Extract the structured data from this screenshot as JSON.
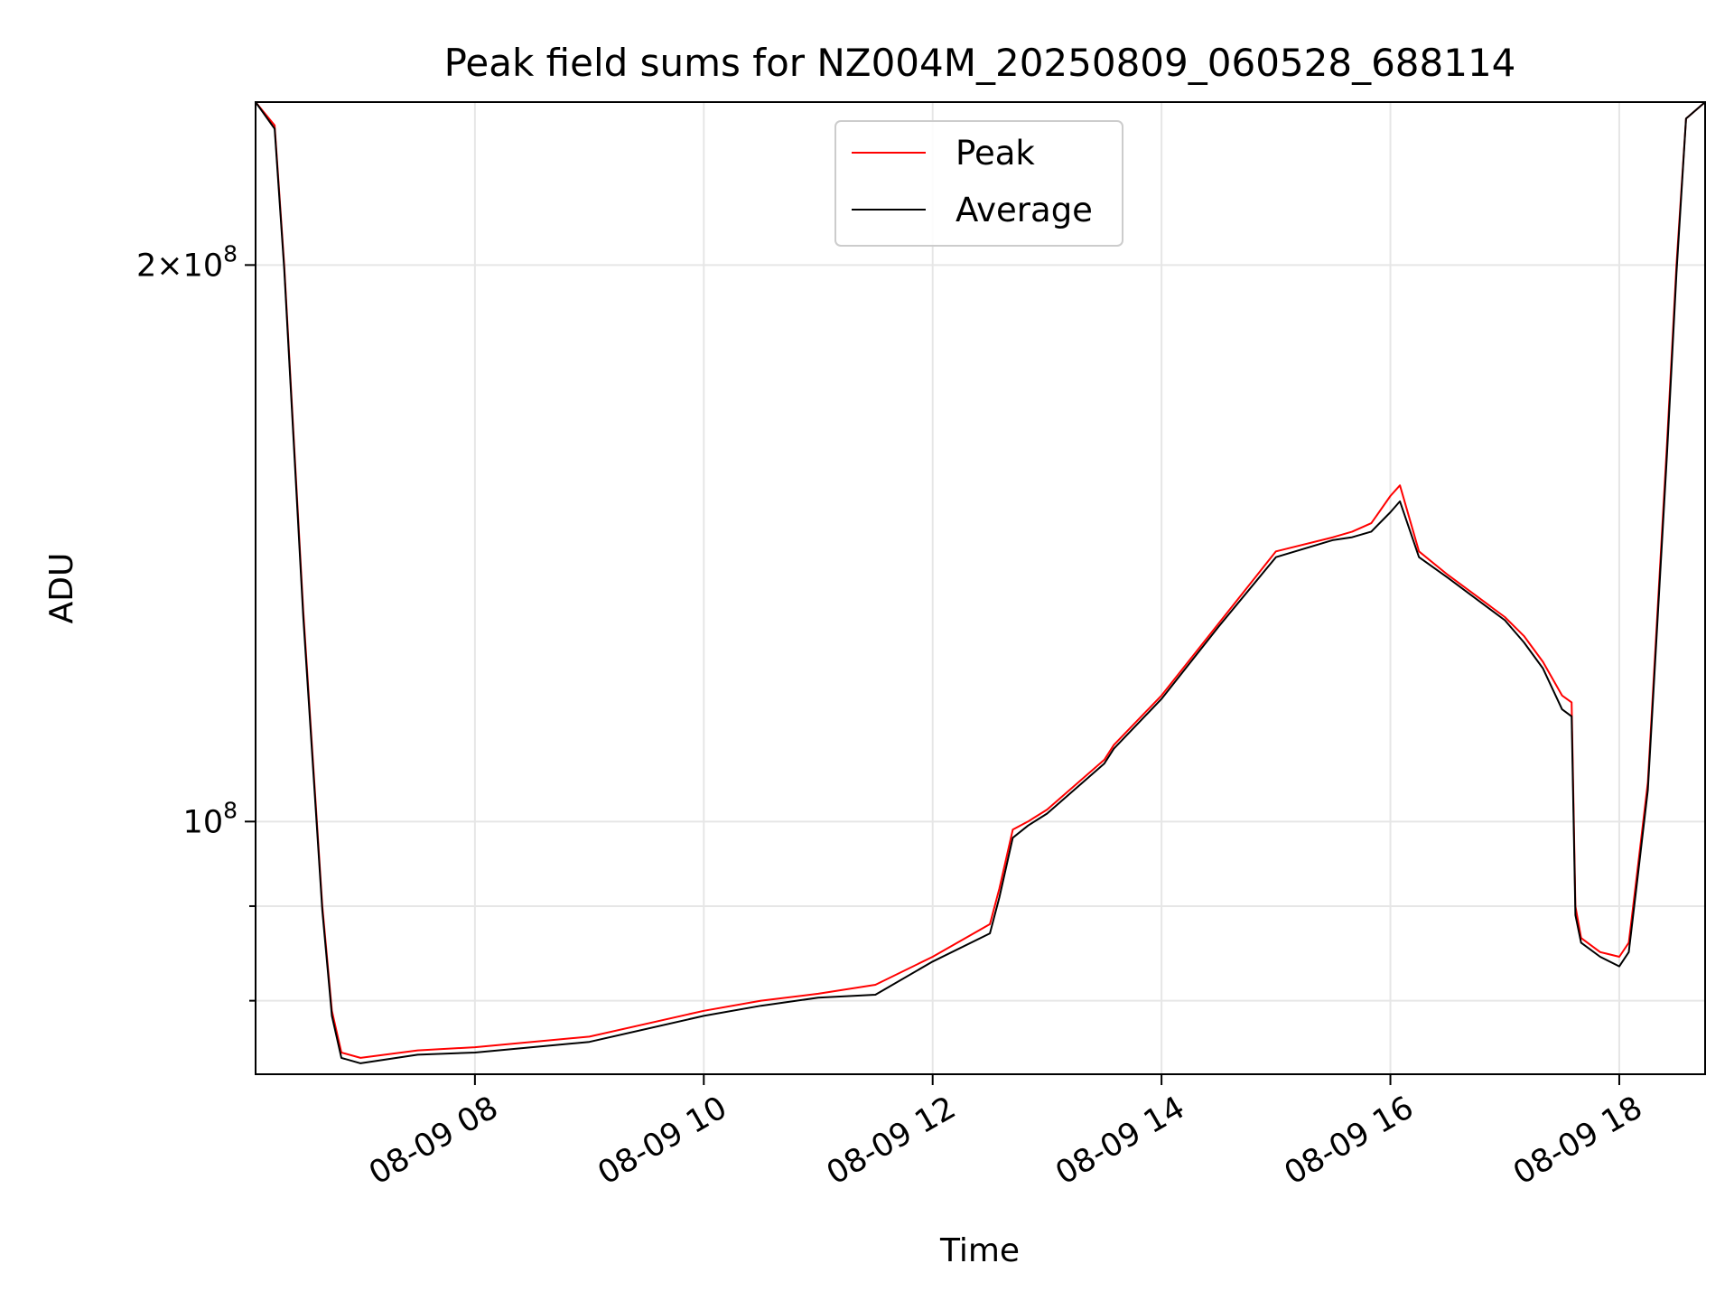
{
  "chart_data": {
    "type": "line",
    "title": "Peak field sums for NZ004M_20250809_060528_688114",
    "xlabel": "Time",
    "ylabel": "ADU",
    "y_scale": "log",
    "ylim": [
      73000000,
      245000000
    ],
    "xlim": [
      "2025-08-09 06:05",
      "2025-08-09 18:45"
    ],
    "x_ticks": [
      {
        "x": "2025-08-09 08:00",
        "label": "08-09 08"
      },
      {
        "x": "2025-08-09 10:00",
        "label": "08-09 10"
      },
      {
        "x": "2025-08-09 12:00",
        "label": "08-09 12"
      },
      {
        "x": "2025-08-09 14:00",
        "label": "08-09 14"
      },
      {
        "x": "2025-08-09 16:00",
        "label": "08-09 16"
      },
      {
        "x": "2025-08-09 18:00",
        "label": "08-09 18"
      }
    ],
    "y_major_ticks": [
      {
        "y": 100000000,
        "base": "10",
        "exp": "8",
        "coef": ""
      },
      {
        "y": 200000000,
        "base": "10",
        "exp": "8",
        "coef": "2"
      }
    ],
    "y_minor_ticks": [
      80000000,
      90000000
    ],
    "grid": true,
    "legend": {
      "placement": "upper center"
    },
    "colors": {
      "Peak": "#ff0000",
      "Average": "#000000"
    },
    "series": [
      {
        "name": "Peak",
        "x": [
          "2025-08-09 06:05",
          "2025-08-09 06:15",
          "2025-08-09 06:20",
          "2025-08-09 06:30",
          "2025-08-09 06:40",
          "2025-08-09 06:45",
          "2025-08-09 06:50",
          "2025-08-09 07:00",
          "2025-08-09 07:30",
          "2025-08-09 08:00",
          "2025-08-09 09:00",
          "2025-08-09 10:00",
          "2025-08-09 10:30",
          "2025-08-09 11:00",
          "2025-08-09 11:30",
          "2025-08-09 12:00",
          "2025-08-09 12:30",
          "2025-08-09 12:35",
          "2025-08-09 12:42",
          "2025-08-09 12:50",
          "2025-08-09 13:00",
          "2025-08-09 13:30",
          "2025-08-09 13:35",
          "2025-08-09 14:00",
          "2025-08-09 14:30",
          "2025-08-09 15:00",
          "2025-08-09 15:30",
          "2025-08-09 15:40",
          "2025-08-09 15:50",
          "2025-08-09 16:00",
          "2025-08-09 16:05",
          "2025-08-09 16:15",
          "2025-08-09 16:30",
          "2025-08-09 17:00",
          "2025-08-09 17:10",
          "2025-08-09 17:20",
          "2025-08-09 17:30",
          "2025-08-09 17:35",
          "2025-08-09 17:37",
          "2025-08-09 17:40",
          "2025-08-09 17:50",
          "2025-08-09 18:00",
          "2025-08-09 18:05",
          "2025-08-09 18:10",
          "2025-08-09 18:15",
          "2025-08-09 18:25",
          "2025-08-09 18:30",
          "2025-08-09 18:35",
          "2025-08-09 18:45"
        ],
        "values": [
          245000000,
          238000000,
          200000000,
          130000000,
          90000000,
          79000000,
          75000000,
          74500000,
          75200000,
          75500000,
          76500000,
          79000000,
          80000000,
          80700000,
          81600000,
          84500000,
          88000000,
          92000000,
          99000000,
          100000000,
          101500000,
          108000000,
          110000000,
          117000000,
          128000000,
          140000000,
          142500000,
          143500000,
          145000000,
          150000000,
          152000000,
          140000000,
          136000000,
          129000000,
          126000000,
          122000000,
          117000000,
          116000000,
          90000000,
          86500000,
          85000000,
          84500000,
          86000000,
          95000000,
          105000000,
          160000000,
          200000000,
          240000000,
          245000000
        ]
      },
      {
        "name": "Average",
        "x": [
          "2025-08-09 06:05",
          "2025-08-09 06:15",
          "2025-08-09 06:20",
          "2025-08-09 06:30",
          "2025-08-09 06:40",
          "2025-08-09 06:45",
          "2025-08-09 06:50",
          "2025-08-09 07:00",
          "2025-08-09 07:30",
          "2025-08-09 08:00",
          "2025-08-09 09:00",
          "2025-08-09 10:00",
          "2025-08-09 10:30",
          "2025-08-09 11:00",
          "2025-08-09 11:30",
          "2025-08-09 12:00",
          "2025-08-09 12:30",
          "2025-08-09 12:35",
          "2025-08-09 12:42",
          "2025-08-09 12:50",
          "2025-08-09 13:00",
          "2025-08-09 13:30",
          "2025-08-09 13:35",
          "2025-08-09 14:00",
          "2025-08-09 14:30",
          "2025-08-09 15:00",
          "2025-08-09 15:30",
          "2025-08-09 15:40",
          "2025-08-09 15:50",
          "2025-08-09 16:00",
          "2025-08-09 16:05",
          "2025-08-09 16:15",
          "2025-08-09 16:30",
          "2025-08-09 17:00",
          "2025-08-09 17:10",
          "2025-08-09 17:20",
          "2025-08-09 17:30",
          "2025-08-09 17:35",
          "2025-08-09 17:37",
          "2025-08-09 17:40",
          "2025-08-09 17:50",
          "2025-08-09 18:00",
          "2025-08-09 18:05",
          "2025-08-09 18:10",
          "2025-08-09 18:15",
          "2025-08-09 18:25",
          "2025-08-09 18:30",
          "2025-08-09 18:35",
          "2025-08-09 18:45"
        ],
        "values": [
          245000000,
          237000000,
          199000000,
          129000000,
          89500000,
          78500000,
          74500000,
          74000000,
          74800000,
          75000000,
          76000000,
          78500000,
          79500000,
          80300000,
          80600000,
          84000000,
          87000000,
          91000000,
          98000000,
          99500000,
          101000000,
          107500000,
          109500000,
          116500000,
          127500000,
          139000000,
          142000000,
          142500000,
          143500000,
          147000000,
          149000000,
          139000000,
          135500000,
          128500000,
          125000000,
          121000000,
          115000000,
          114000000,
          89000000,
          86000000,
          84500000,
          83500000,
          85000000,
          94000000,
          104000000,
          158000000,
          198000000,
          240000000,
          245000000
        ]
      }
    ]
  }
}
